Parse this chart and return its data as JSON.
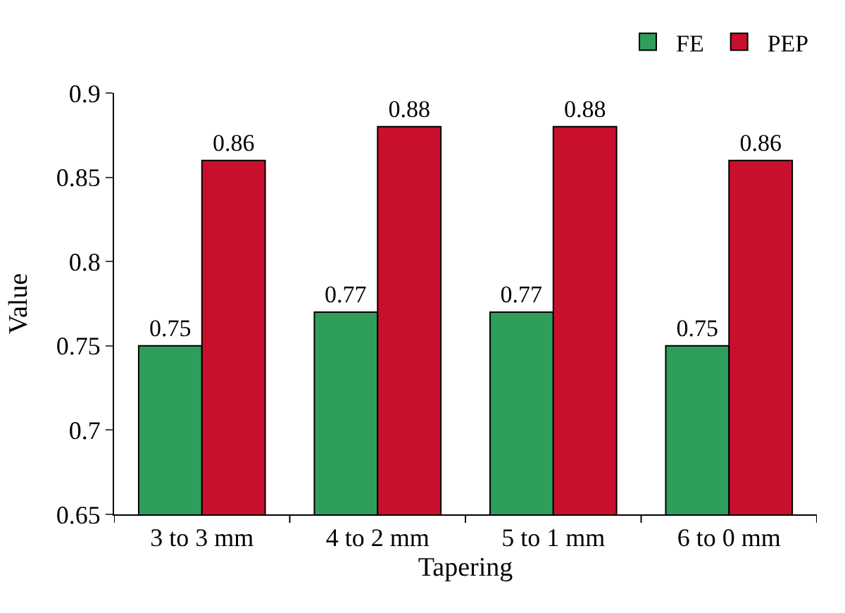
{
  "chart_data": {
    "type": "bar",
    "xlabel": "Tapering",
    "ylabel": "Value",
    "categories": [
      "3 to 3 mm",
      "4 to 2 mm",
      "5 to 1 mm",
      "6 to 0 mm"
    ],
    "series": [
      {
        "name": "FE",
        "color": "#2e9e5a",
        "values": [
          0.75,
          0.77,
          0.77,
          0.75
        ]
      },
      {
        "name": "PEP",
        "color": "#c8102e",
        "values": [
          0.86,
          0.88,
          0.88,
          0.86
        ]
      }
    ],
    "ylim": [
      0.65,
      0.9
    ],
    "yticks": [
      0.65,
      0.7,
      0.75,
      0.8,
      0.85,
      0.9
    ],
    "data_labels": true,
    "legend": "top right"
  }
}
